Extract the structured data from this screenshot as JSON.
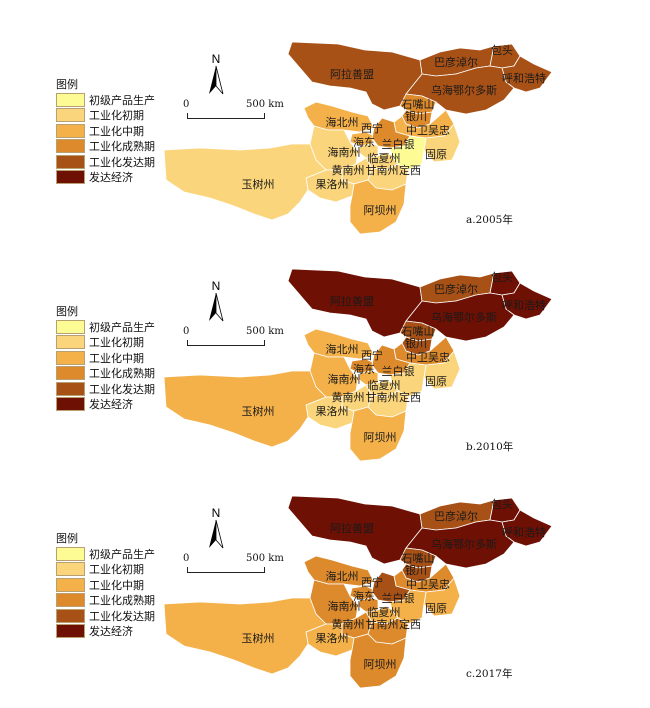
{
  "legend": {
    "title": "图例",
    "items": [
      {
        "label": "初级产品生产",
        "color": "#fdfb93"
      },
      {
        "label": "工业化初期",
        "color": "#fbd57b"
      },
      {
        "label": "工业化中期",
        "color": "#f4b14a"
      },
      {
        "label": "工业化成熟期",
        "color": "#dc8a2c"
      },
      {
        "label": "工业化发达期",
        "color": "#a85116"
      },
      {
        "label": "发达经济",
        "color": "#6e1004"
      }
    ]
  },
  "north_label": "N",
  "scale": {
    "zero": "0",
    "distance": "500 km"
  },
  "regions": [
    {
      "key": "alashan",
      "name": "阿拉善盟"
    },
    {
      "key": "bayannur",
      "name": "巴彦淖尔"
    },
    {
      "key": "baotou",
      "name": "包头"
    },
    {
      "key": "hohhot",
      "name": "呼和浩特"
    },
    {
      "key": "ordos",
      "name": "乌海鄂尔多斯"
    },
    {
      "key": "shizuishan",
      "name": "石嘴山"
    },
    {
      "key": "yinchuan",
      "name": "银川"
    },
    {
      "key": "haibei",
      "name": "海北州"
    },
    {
      "key": "xining",
      "name": "西宁"
    },
    {
      "key": "zhongwei",
      "name": "中卫吴忠"
    },
    {
      "key": "haidong",
      "name": "海东"
    },
    {
      "key": "lanzhou",
      "name": "兰白银"
    },
    {
      "key": "guyuan",
      "name": "固原"
    },
    {
      "key": "hainan",
      "name": "海南州"
    },
    {
      "key": "linxia",
      "name": "临夏州"
    },
    {
      "key": "huangnan",
      "name": "黄南州"
    },
    {
      "key": "gannan",
      "name": "甘南州"
    },
    {
      "key": "dingxi",
      "name": "定西"
    },
    {
      "key": "yushu",
      "name": "玉树州"
    },
    {
      "key": "golog",
      "name": "果洛州"
    },
    {
      "key": "aba",
      "name": "阿坝州"
    }
  ],
  "panels": [
    {
      "caption": "a.2005年",
      "levels": {
        "alashan": 4,
        "bayannur": 4,
        "baotou": 4,
        "hohhot": 4,
        "ordos": 4,
        "shizuishan": 3,
        "yinchuan": 3,
        "haibei": 2,
        "xining": 2,
        "zhongwei": 2,
        "haidong": 1,
        "lanzhou": 3,
        "guyuan": 1,
        "hainan": 1,
        "linxia": 1,
        "huangnan": 1,
        "gannan": 1,
        "dingxi": 0,
        "yushu": 1,
        "golog": 1,
        "aba": 2
      }
    },
    {
      "caption": "b.2010年",
      "levels": {
        "alashan": 5,
        "bayannur": 4,
        "baotou": 5,
        "hohhot": 5,
        "ordos": 5,
        "shizuishan": 4,
        "yinchuan": 4,
        "haibei": 2,
        "xining": 3,
        "zhongwei": 3,
        "haidong": 2,
        "lanzhou": 3,
        "guyuan": 1,
        "hainan": 2,
        "linxia": 1,
        "huangnan": 1,
        "gannan": 1,
        "dingxi": 1,
        "yushu": 2,
        "golog": 1,
        "aba": 2
      }
    },
    {
      "caption": "c.2017年",
      "levels": {
        "alashan": 5,
        "bayannur": 4,
        "baotou": 5,
        "hohhot": 5,
        "ordos": 5,
        "shizuishan": 4,
        "yinchuan": 4,
        "haibei": 3,
        "xining": 3,
        "zhongwei": 3,
        "haidong": 3,
        "lanzhou": 4,
        "guyuan": 2,
        "hainan": 3,
        "linxia": 2,
        "huangnan": 3,
        "gannan": 3,
        "dingxi": 2,
        "yushu": 2,
        "golog": 2,
        "aba": 3
      }
    }
  ]
}
